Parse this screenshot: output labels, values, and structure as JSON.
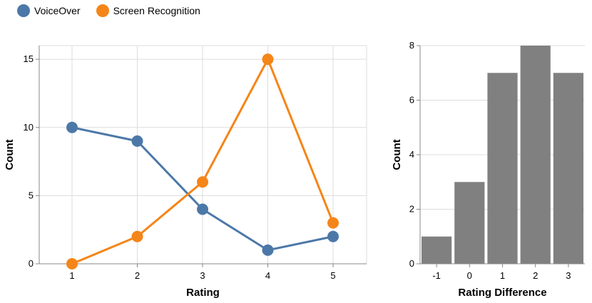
{
  "legend": {
    "items": [
      {
        "label": "VoiceOver",
        "color": "#4c78a8"
      },
      {
        "label": "Screen Recognition",
        "color": "#f58518"
      }
    ]
  },
  "chart_data": [
    {
      "type": "line",
      "xlabel": "Rating",
      "ylabel": "Count",
      "x": [
        1,
        2,
        3,
        4,
        5
      ],
      "ylim": [
        0,
        16
      ],
      "yticks": [
        0,
        5,
        10,
        15
      ],
      "grid": true,
      "legend_position": "top-left",
      "series": [
        {
          "name": "VoiceOver",
          "color": "#4c78a8",
          "values": [
            10,
            9,
            4,
            1,
            2
          ]
        },
        {
          "name": "Screen Recognition",
          "color": "#f58518",
          "values": [
            0,
            2,
            6,
            15,
            3
          ]
        }
      ]
    },
    {
      "type": "bar",
      "xlabel": "Rating Difference",
      "ylabel": "Count",
      "categories": [
        "-1",
        "0",
        "1",
        "2",
        "3"
      ],
      "values": [
        1,
        3,
        7,
        8,
        7
      ],
      "ylim": [
        0,
        8
      ],
      "yticks": [
        0,
        2,
        4,
        6,
        8
      ],
      "grid": true,
      "color": "#808080"
    }
  ]
}
